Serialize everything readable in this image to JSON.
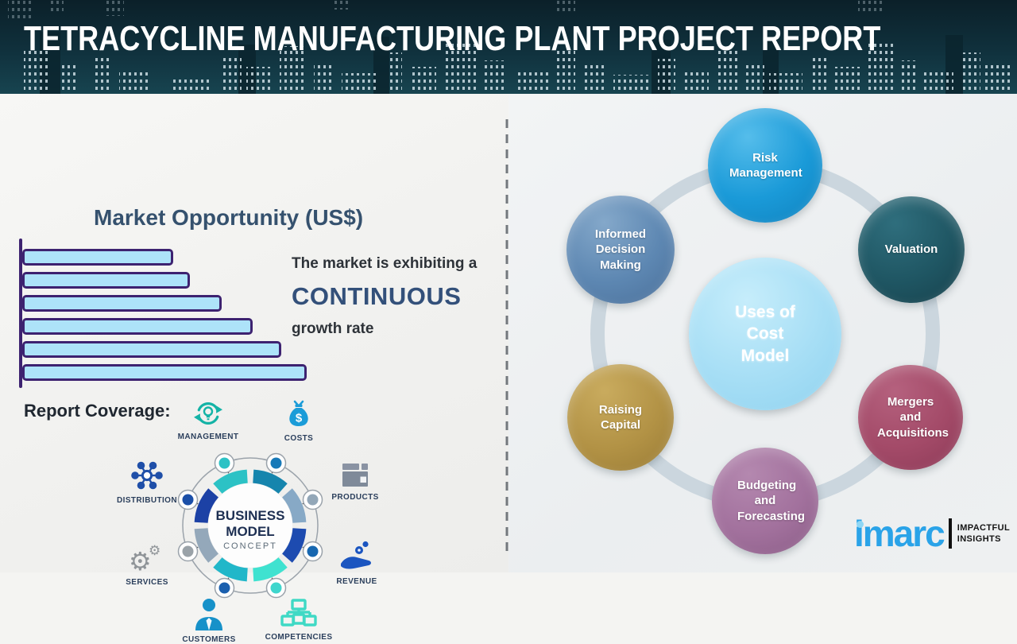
{
  "header": {
    "title": "TETRACYCLINE MANUFACTURING PLANT PROJECT REPORT"
  },
  "left_panel": {
    "section_title": "Market Opportunity (US$)",
    "growth_text": {
      "line1": "The market is exhibiting a",
      "emphasis": "CONTINUOUS",
      "line2": "growth rate"
    },
    "report_coverage_label": "Report Coverage:",
    "business_model": {
      "word1": "BUSINESS",
      "word2": "MODEL",
      "word3": "CONCEPT"
    },
    "coverage_items": [
      {
        "label": "MANAGEMENT",
        "icon": "management-cycle-icon"
      },
      {
        "label": "COSTS",
        "icon": "money-bag-icon"
      },
      {
        "label": "DISTRIBUTION",
        "icon": "network-hub-icon"
      },
      {
        "label": "PRODUCTS",
        "icon": "box-icon"
      },
      {
        "label": "SERVICES",
        "icon": "gears-icon"
      },
      {
        "label": "REVENUE",
        "icon": "hand-coins-icon"
      },
      {
        "label": "CUSTOMERS",
        "icon": "person-icon"
      },
      {
        "label": "COMPETENCIES",
        "icon": "org-chart-icon"
      }
    ]
  },
  "chart_data": {
    "type": "bar",
    "orientation": "horizontal",
    "title": "Market Opportunity (US$)",
    "categories": [
      "",
      "",
      "",
      "",
      "",
      ""
    ],
    "values_relative": [
      53,
      59,
      70,
      81,
      91,
      100
    ],
    "value_axis_labels_shown": false,
    "annotation": "The market is exhibiting a CONTINUOUS growth rate",
    "bar_fill": "#ade3f9",
    "bar_border": "#3d2270"
  },
  "right_panel": {
    "center_bubble": {
      "label": "Uses of Cost Model",
      "color": "#a6def5"
    },
    "bubbles": [
      {
        "label": "Risk Management",
        "color": "#1a9ad8"
      },
      {
        "label": "Valuation",
        "color": "#1f5663"
      },
      {
        "label": "Informed Decision Making",
        "color": "#5d87b2"
      },
      {
        "label": "Raising Capital",
        "color": "#b29245"
      },
      {
        "label": "Mergers and Acquisitions",
        "color": "#a34a68"
      },
      {
        "label": "Budgeting and Forecasting",
        "color": "#a2719d"
      }
    ]
  },
  "logo": {
    "brand": "imarc",
    "tagline_line1": "IMPACTFUL",
    "tagline_line2": "INSIGHTS"
  },
  "colors": {
    "header_bg": "#0d2630",
    "accent_navy": "#35516e",
    "ring": "#cbd6de",
    "axis_purple": "#3d2270"
  }
}
